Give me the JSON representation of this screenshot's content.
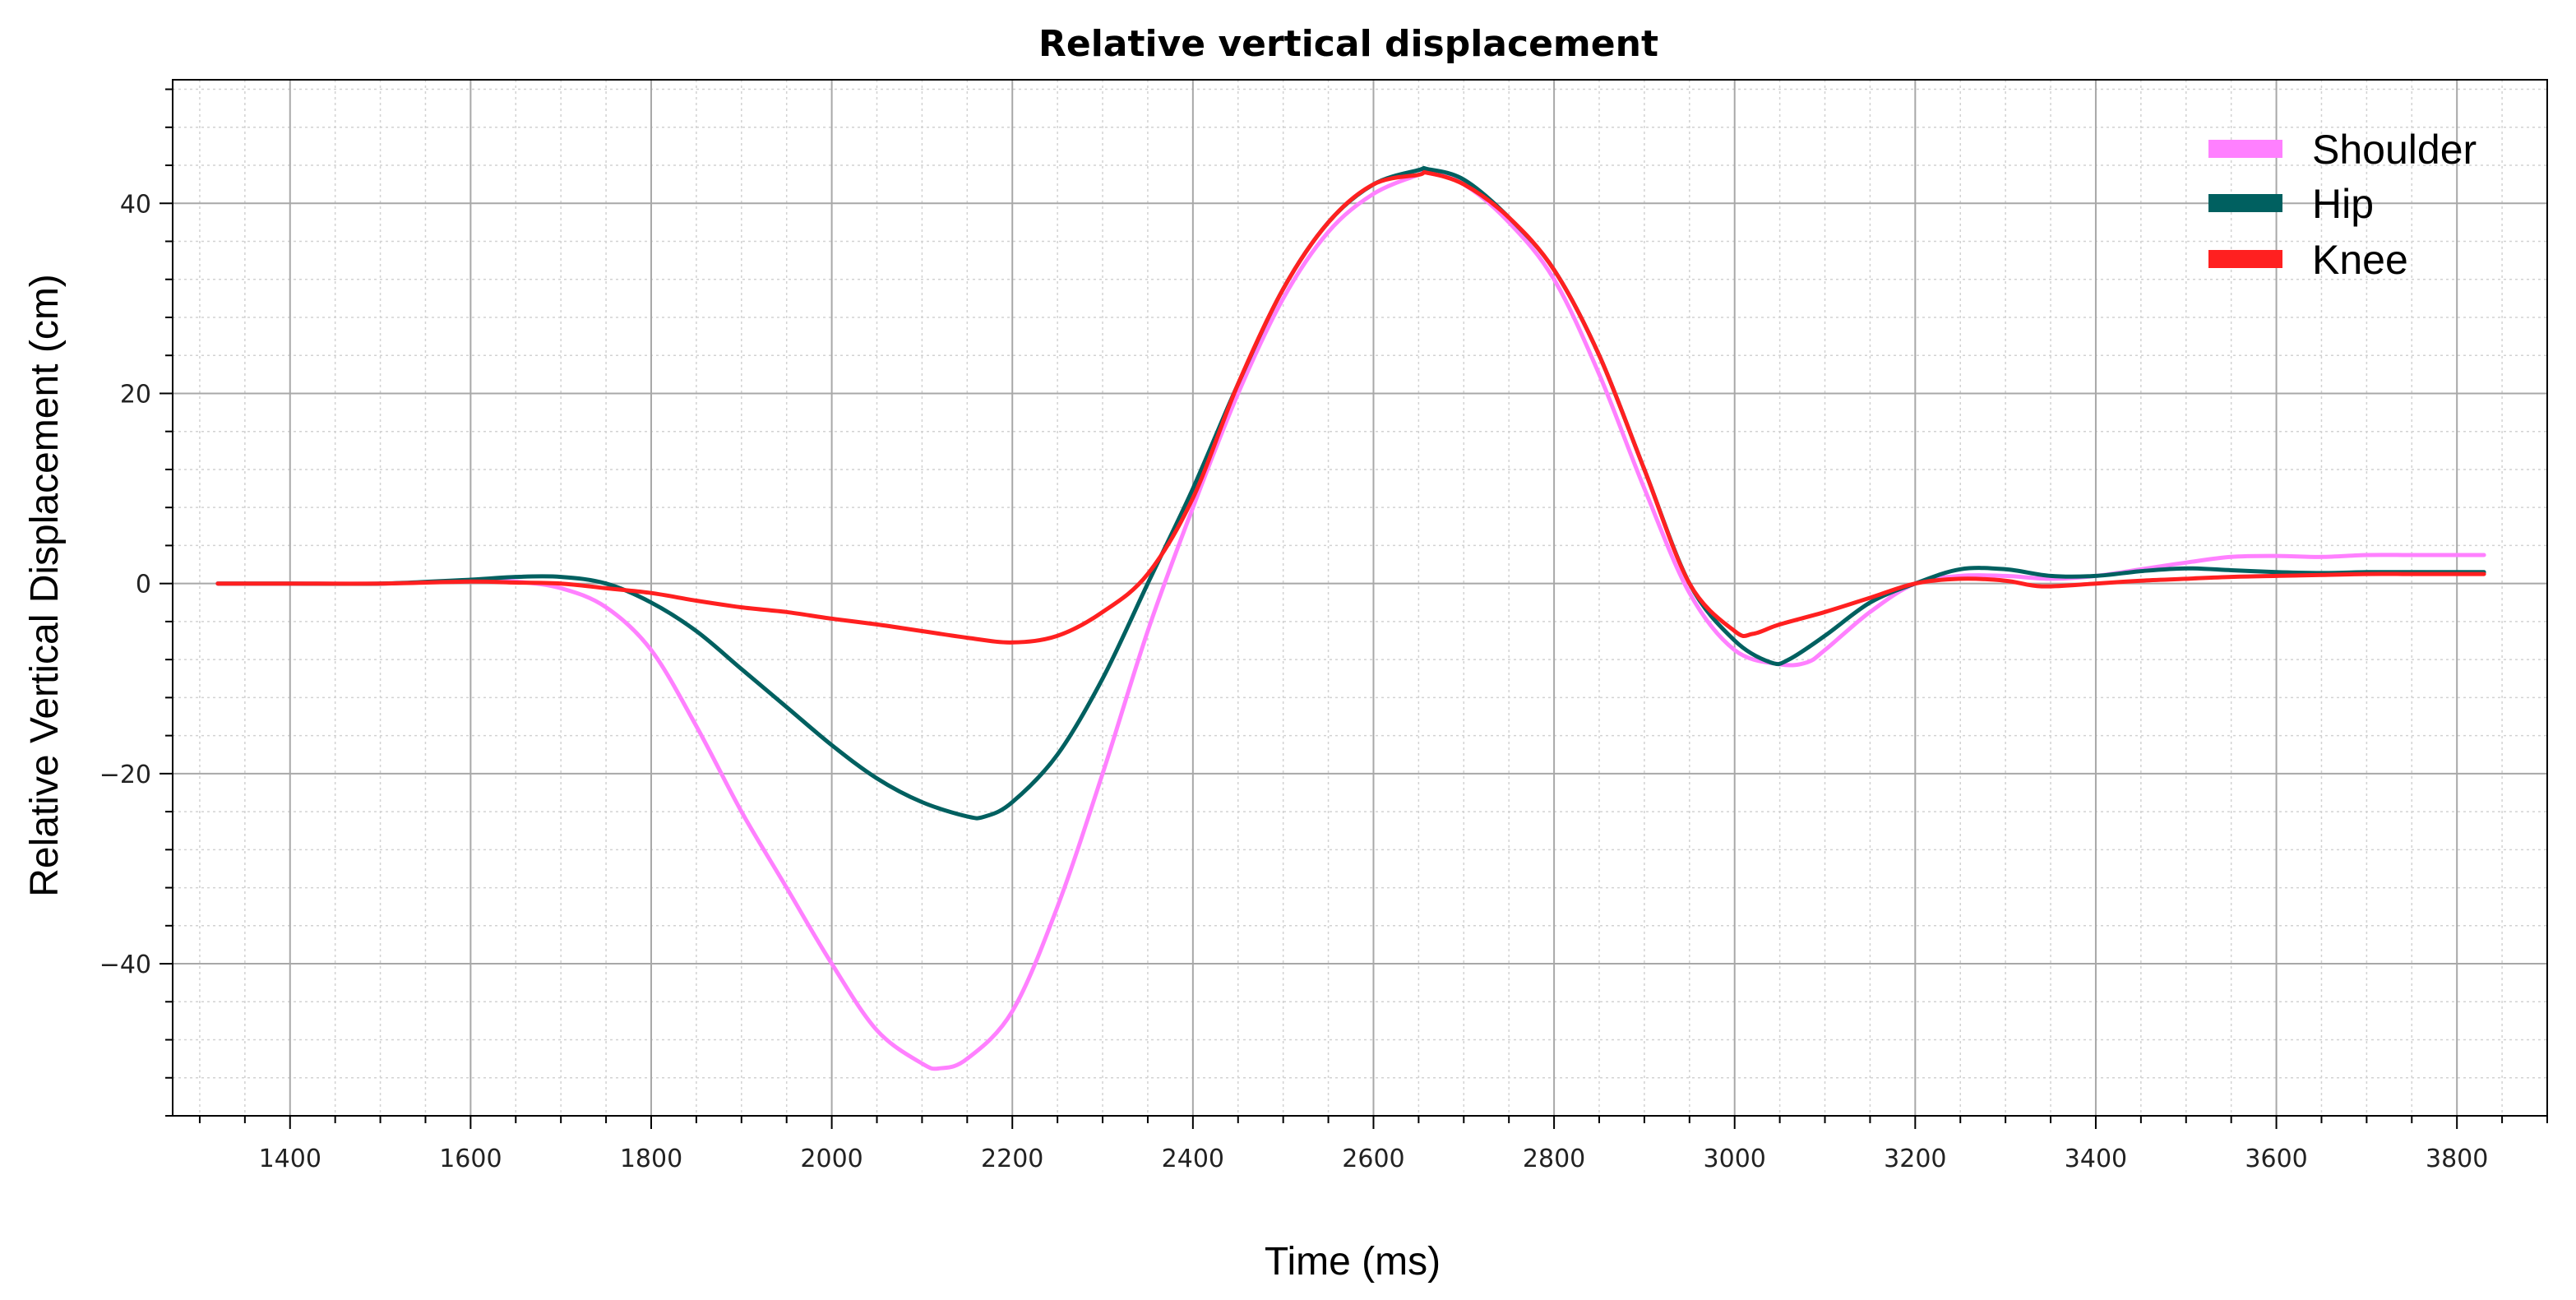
{
  "chart_data": {
    "type": "line",
    "title": "Relative vertical displacement",
    "xlabel": "Time (ms)",
    "ylabel": "Relative Vertical Displacement (cm)",
    "xlim": [
      1270,
      3900
    ],
    "ylim": [
      -56,
      53
    ],
    "xticks": [
      1400,
      1600,
      1800,
      2000,
      2200,
      2400,
      2600,
      2800,
      3000,
      3200,
      3400,
      3600,
      3800
    ],
    "yticks": [
      40,
      20,
      0,
      -20,
      -40
    ],
    "xtick_labels": [
      "1400",
      "1600",
      "1800",
      "2000",
      "2200",
      "2400",
      "2600",
      "2800",
      "3000",
      "3200",
      "3400",
      "3600",
      "3800"
    ],
    "ytick_labels": [
      "40",
      "20",
      "0",
      "−20",
      "−40"
    ],
    "grid": true,
    "legend_position": "top-right",
    "series": [
      {
        "name": "Shoulder",
        "color": "#ff80ff",
        "x": [
          1320,
          1400,
          1500,
          1600,
          1650,
          1700,
          1750,
          1800,
          1850,
          1900,
          1950,
          2000,
          2050,
          2100,
          2120,
          2150,
          2200,
          2250,
          2300,
          2350,
          2400,
          2450,
          2500,
          2550,
          2600,
          2650,
          2660,
          2700,
          2750,
          2800,
          2850,
          2900,
          2950,
          3000,
          3050,
          3080,
          3100,
          3150,
          3200,
          3250,
          3300,
          3350,
          3400,
          3450,
          3500,
          3550,
          3600,
          3650,
          3700,
          3750,
          3800,
          3830
        ],
        "y": [
          0,
          0,
          0,
          0.3,
          0.2,
          -0.5,
          -2.5,
          -7,
          -15,
          -24,
          -32,
          -40,
          -47,
          -50.5,
          -51,
          -50,
          -45,
          -34,
          -20,
          -5,
          8,
          20,
          30,
          37,
          41,
          43,
          43.2,
          42,
          38,
          32,
          22,
          10,
          -1,
          -7,
          -8.5,
          -8.3,
          -7,
          -3,
          0,
          0.8,
          0.8,
          0.5,
          0.8,
          1.5,
          2.2,
          2.8,
          2.9,
          2.8,
          3,
          3,
          3,
          3
        ]
      },
      {
        "name": "Hip",
        "color": "#006060",
        "x": [
          1320,
          1400,
          1500,
          1600,
          1650,
          1700,
          1750,
          1800,
          1850,
          1900,
          1950,
          2000,
          2050,
          2100,
          2150,
          2170,
          2200,
          2250,
          2300,
          2350,
          2400,
          2450,
          2500,
          2550,
          2600,
          2650,
          2660,
          2700,
          2750,
          2800,
          2850,
          2900,
          2950,
          3000,
          3040,
          3060,
          3100,
          3150,
          3200,
          3250,
          3300,
          3350,
          3400,
          3450,
          3500,
          3550,
          3600,
          3650,
          3700,
          3750,
          3800,
          3830
        ],
        "y": [
          0,
          0,
          0,
          0.4,
          0.7,
          0.7,
          0,
          -2,
          -5,
          -9,
          -13,
          -17,
          -20.5,
          -23,
          -24.5,
          -24.5,
          -23,
          -18,
          -10,
          0,
          10,
          21,
          31,
          38,
          42,
          43.5,
          43.6,
          42.5,
          38.5,
          33,
          24,
          12,
          0,
          -6,
          -8.3,
          -8,
          -5.5,
          -2,
          0,
          1.5,
          1.5,
          0.8,
          0.8,
          1.3,
          1.6,
          1.4,
          1.2,
          1.1,
          1.2,
          1.2,
          1.2,
          1.2
        ]
      },
      {
        "name": "Knee",
        "color": "#ff2020",
        "x": [
          1320,
          1400,
          1500,
          1600,
          1650,
          1700,
          1750,
          1800,
          1850,
          1900,
          1950,
          2000,
          2050,
          2100,
          2150,
          2200,
          2250,
          2300,
          2350,
          2400,
          2450,
          2500,
          2550,
          2600,
          2650,
          2660,
          2700,
          2750,
          2800,
          2850,
          2900,
          2950,
          3000,
          3020,
          3050,
          3100,
          3150,
          3200,
          3250,
          3300,
          3340,
          3400,
          3450,
          3500,
          3550,
          3600,
          3650,
          3700,
          3750,
          3800,
          3830
        ],
        "y": [
          0,
          0,
          0,
          0.2,
          0.1,
          0,
          -0.5,
          -1,
          -1.8,
          -2.5,
          -3,
          -3.7,
          -4.3,
          -5,
          -5.7,
          -6.2,
          -5.5,
          -3,
          1,
          9,
          21,
          31,
          38,
          42,
          43,
          43.2,
          42,
          38.5,
          33,
          24,
          12,
          0,
          -5,
          -5.3,
          -4.3,
          -3,
          -1.5,
          0,
          0.5,
          0.3,
          -0.3,
          0,
          0.3,
          0.5,
          0.7,
          0.8,
          0.9,
          1,
          1,
          1,
          1
        ]
      }
    ]
  }
}
